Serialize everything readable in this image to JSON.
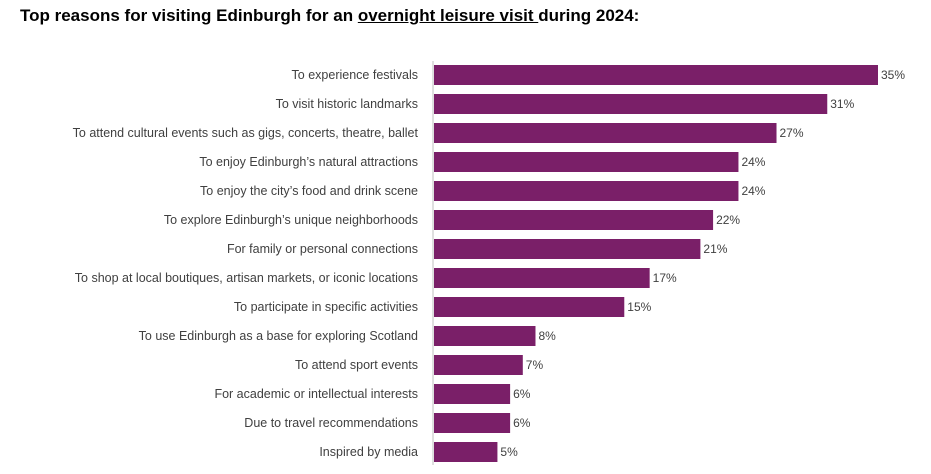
{
  "title": {
    "before": "Top reasons for visiting Edinburgh for an ",
    "underlined": "overnight leisure visit ",
    "after": "during 2024:"
  },
  "colors": {
    "bar": "#7a1f68",
    "axis": "#bfbfbf"
  },
  "chart_data": {
    "type": "bar",
    "orientation": "horizontal",
    "unit": "%",
    "categories": [
      "To experience festivals",
      "To visit historic landmarks",
      "To attend cultural events such as gigs, concerts, theatre, ballet",
      "To enjoy Edinburgh’s natural attractions",
      "To enjoy the city’s food and drink scene",
      "To explore Edinburgh’s unique neighborhoods",
      "For family or personal connections",
      "To shop at local boutiques, artisan markets, or iconic locations",
      "To participate in specific activities",
      "To use Edinburgh as a base for exploring Scotland",
      "To attend sport events",
      "For academic or intellectual interests",
      "Due to travel recommendations",
      "Inspired by media"
    ],
    "values": [
      35,
      31,
      27,
      24,
      24,
      22,
      21,
      17,
      15,
      8,
      7,
      6,
      6,
      5
    ],
    "labels": [
      "35%",
      "31%",
      "27%",
      "24%",
      "24%",
      "22%",
      "21%",
      "17%",
      "15%",
      "8%",
      "7%",
      "6%",
      "6%",
      "5%"
    ],
    "xlim": [
      0,
      35
    ],
    "grid": false,
    "legend": "none"
  }
}
